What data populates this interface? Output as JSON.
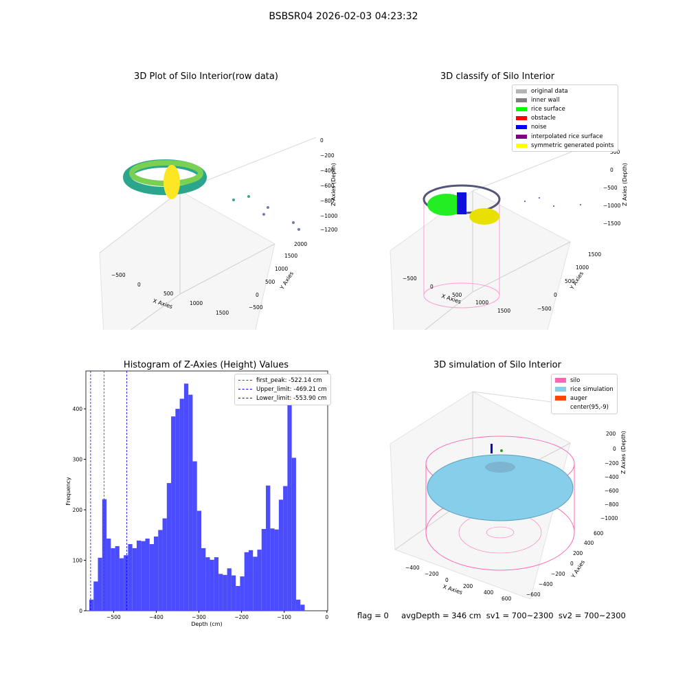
{
  "suptitle": "BSBSR04 2026-02-03 04:23:32",
  "panels": {
    "raw": {
      "title": "3D Plot of Silo Interior(row data)",
      "xlabel": "X Axies",
      "ylabel": "Y Axies",
      "zlabel": "Z Axies (Depth)",
      "xticks": [
        "−500",
        "0",
        "500",
        "1000",
        "1500"
      ],
      "yticks": [
        "−500",
        "0",
        "500",
        "1000",
        "1500",
        "2000"
      ],
      "zticks": [
        "0",
        "−200",
        "−400",
        "−600",
        "−800",
        "−1000",
        "−1200"
      ]
    },
    "classify": {
      "title": "3D classify of Silo Interior",
      "xlabel": "X Axies",
      "ylabel": "Y Axies",
      "zlabel": "Z Axies (Depth)",
      "xticks": [
        "−500",
        "0",
        "500",
        "1000",
        "1500"
      ],
      "yticks": [
        "−500",
        "0",
        "500",
        "1000",
        "1500"
      ],
      "zticks": [
        "500",
        "0",
        "−500",
        "−1000",
        "−1500"
      ],
      "legend": [
        {
          "label": "original data",
          "color": "#b4b4b4"
        },
        {
          "label": "inner wall",
          "color": "#808080"
        },
        {
          "label": "rice surface",
          "color": "#00ff00"
        },
        {
          "label": "obstacle",
          "color": "#ff0000"
        },
        {
          "label": "noise",
          "color": "#0000ff"
        },
        {
          "label": "interpolated rice surface",
          "color": "#800080"
        },
        {
          "label": "symmetric generated points",
          "color": "#ffff00"
        }
      ]
    },
    "simulation": {
      "title": "3D simulation of Silo Interior",
      "xlabel": "X Axies",
      "ylabel": "Y Axies",
      "zlabel": "Z Axies (Depth)",
      "xticks": [
        "−400",
        "−200",
        "0",
        "200",
        "400",
        "600"
      ],
      "yticks": [
        "−600",
        "−400",
        "−200",
        "0",
        "200",
        "400",
        "600"
      ],
      "zticks": [
        "200",
        "0",
        "−200",
        "−400",
        "−600",
        "−800",
        "−1000"
      ],
      "legend": [
        {
          "label": "silo",
          "color": "#ff69b4"
        },
        {
          "label": "rice simulation",
          "color": "#87ceeb"
        },
        {
          "label": "auger",
          "color": "#ff4500"
        },
        {
          "label": "center(95,-9)",
          "color": "#ffffff"
        }
      ]
    }
  },
  "chart_data": {
    "type": "bar",
    "title": "Histogram of Z-Axies (Height) Values",
    "xlabel": "Depth (cm)",
    "ylabel": "Frequency",
    "xlim": [
      -565,
      2
    ],
    "ylim": [
      0,
      475
    ],
    "xticks": [
      -500,
      -400,
      -300,
      -200,
      -100,
      0
    ],
    "yticks": [
      0,
      100,
      200,
      300,
      400
    ],
    "bar_color": "#4c4cff",
    "bin_width": 10.1,
    "bin_start": -557,
    "values": [
      22,
      58,
      105,
      221,
      143,
      124,
      128,
      104,
      110,
      132,
      124,
      139,
      138,
      143,
      132,
      147,
      160,
      183,
      253,
      385,
      400,
      420,
      450,
      428,
      296,
      198,
      124,
      106,
      101,
      106,
      73,
      71,
      84,
      70,
      49,
      68,
      116,
      120,
      107,
      121,
      162,
      248,
      163,
      161,
      220,
      247,
      437,
      303,
      22,
      12
    ],
    "vlines": [
      {
        "label": "first_peak: -522.14 cm",
        "x": -522.14,
        "color": "#ff0000"
      },
      {
        "label": "Upper_limit: -469.21 cm",
        "x": -469.21,
        "color": "#0000ff"
      },
      {
        "label": "Lower_limit: -553.90 cm",
        "x": -553.9,
        "color": "#0000ff"
      }
    ]
  },
  "footer": "flag = 0     avgDepth = 346 cm  sv1 = 700~2300  sv2 = 700~2300"
}
